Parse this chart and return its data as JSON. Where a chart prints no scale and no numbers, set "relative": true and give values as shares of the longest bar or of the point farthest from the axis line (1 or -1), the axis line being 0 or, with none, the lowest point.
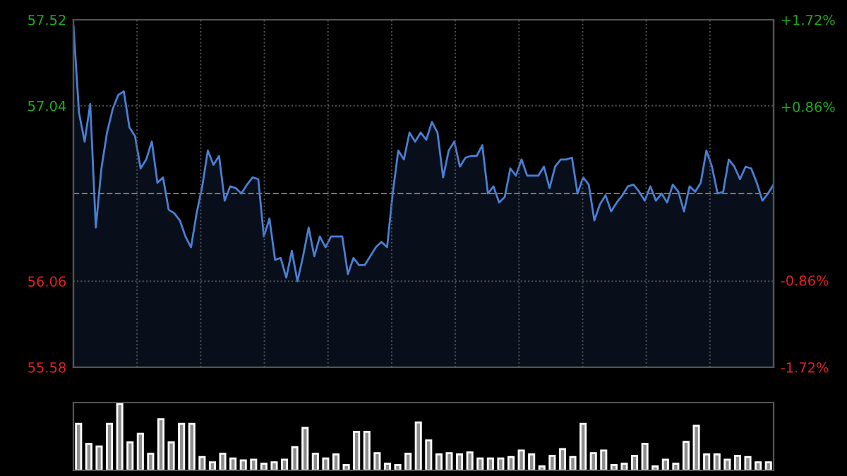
{
  "chart_data": [
    {
      "type": "area",
      "color": "#4a7fd4",
      "grid": true,
      "marker": "none",
      "line_style": "solid",
      "ylim": [
        55.58,
        57.52
      ],
      "yticks": [
        55.58,
        56.06,
        57.04,
        57.52
      ],
      "y2lim": [
        -1.72,
        1.72
      ],
      "y2ticks": [
        {
          "value": 1.72,
          "label": "+1.72%"
        },
        {
          "value": 0.86,
          "label": "+0.86%"
        },
        {
          "value": -0.86,
          "label": "-0.86%"
        },
        {
          "value": -1.72,
          "label": "-1.72%"
        }
      ],
      "ref_lines": [
        {
          "axis": "y",
          "value": 56.55,
          "label": null,
          "line_style": "dashed"
        }
      ],
      "categories": [
        null,
        null,
        null,
        null,
        null,
        null,
        null,
        null,
        null,
        null,
        null,
        null,
        null,
        null,
        null,
        null,
        null,
        null,
        null,
        null,
        null,
        null,
        null,
        null,
        null,
        null,
        null,
        null,
        null,
        null,
        null,
        null,
        null,
        null,
        null,
        null,
        null,
        null,
        null,
        null,
        null,
        null,
        null,
        null,
        null,
        null,
        null,
        null,
        null,
        null,
        null,
        null,
        null,
        null,
        null,
        null,
        null,
        null,
        null,
        null,
        null,
        null,
        null,
        null,
        null,
        null,
        null,
        null,
        null,
        null,
        null,
        null,
        null,
        null,
        null,
        null,
        null,
        null,
        null,
        null,
        null,
        null,
        null,
        null,
        null,
        null,
        null,
        null,
        null,
        null,
        null,
        null,
        null,
        null,
        null,
        null,
        null,
        null,
        null,
        null,
        null,
        null,
        null,
        null,
        null,
        null,
        null,
        null,
        null,
        null,
        null,
        null,
        null,
        null,
        null,
        null,
        null,
        null,
        null,
        null,
        null,
        null,
        null,
        null,
        null,
        null
      ],
      "values": [
        57.49,
        57.0,
        56.84,
        57.05,
        56.36,
        56.69,
        56.89,
        57.02,
        57.1,
        57.12,
        56.92,
        56.87,
        56.69,
        56.74,
        56.84,
        56.61,
        56.64,
        56.46,
        56.44,
        56.4,
        56.31,
        56.25,
        56.44,
        56.59,
        56.79,
        56.71,
        56.76,
        56.51,
        56.59,
        56.58,
        56.55,
        56.6,
        56.64,
        56.63,
        56.31,
        56.41,
        56.18,
        56.19,
        56.08,
        56.23,
        56.06,
        56.2,
        56.36,
        56.2,
        56.31,
        56.25,
        56.31,
        56.31,
        56.31,
        56.1,
        56.19,
        56.15,
        56.15,
        56.2,
        56.25,
        56.28,
        56.25,
        56.55,
        56.79,
        56.74,
        56.89,
        56.84,
        56.89,
        56.85,
        56.95,
        56.89,
        56.64,
        56.79,
        56.84,
        56.7,
        56.75,
        56.76,
        56.76,
        56.82,
        56.55,
        56.59,
        56.5,
        56.53,
        56.69,
        56.65,
        56.74,
        56.65,
        56.65,
        56.65,
        56.7,
        56.58,
        56.7,
        56.74,
        56.74,
        56.75,
        56.55,
        56.64,
        56.6,
        56.4,
        56.49,
        56.54,
        56.45,
        56.5,
        56.54,
        56.59,
        56.6,
        56.56,
        56.51,
        56.59,
        56.51,
        56.55,
        56.5,
        56.6,
        56.56,
        56.45,
        56.59,
        56.56,
        56.61,
        56.79,
        56.7,
        56.55,
        56.56,
        56.74,
        56.7,
        56.63,
        56.7,
        56.69,
        56.61,
        56.51,
        56.55,
        56.6
      ]
    },
    {
      "type": "bar",
      "relative": true,
      "color": "#8c8c8c",
      "categories": [
        null,
        null,
        null,
        null,
        null,
        null,
        null,
        null,
        null,
        null,
        null,
        null,
        null,
        null,
        null,
        null,
        null,
        null,
        null,
        null,
        null,
        null,
        null,
        null,
        null,
        null,
        null,
        null,
        null,
        null,
        null,
        null,
        null,
        null,
        null,
        null,
        null,
        null,
        null,
        null,
        null,
        null,
        null,
        null,
        null,
        null,
        null,
        null,
        null,
        null,
        null,
        null,
        null,
        null,
        null,
        null,
        null,
        null,
        null,
        null,
        null,
        null,
        null,
        null,
        null,
        null,
        null,
        null
      ],
      "values": [
        0.7,
        0.4,
        0.36,
        0.7,
        1.0,
        0.42,
        0.55,
        0.25,
        0.77,
        0.42,
        0.7,
        0.7,
        0.2,
        0.12,
        0.25,
        0.18,
        0.15,
        0.16,
        0.1,
        0.12,
        0.16,
        0.35,
        0.64,
        0.25,
        0.18,
        0.24,
        0.08,
        0.58,
        0.58,
        0.26,
        0.1,
        0.08,
        0.25,
        0.72,
        0.45,
        0.24,
        0.26,
        0.24,
        0.27,
        0.18,
        0.18,
        0.18,
        0.2,
        0.3,
        0.24,
        0.06,
        0.22,
        0.32,
        0.2,
        0.7,
        0.26,
        0.3,
        0.08,
        0.1,
        0.22,
        0.4,
        0.06,
        0.16,
        0.1,
        0.43,
        0.67,
        0.24,
        0.24,
        0.16,
        0.22,
        0.2,
        0.12,
        0.12
      ]
    }
  ]
}
